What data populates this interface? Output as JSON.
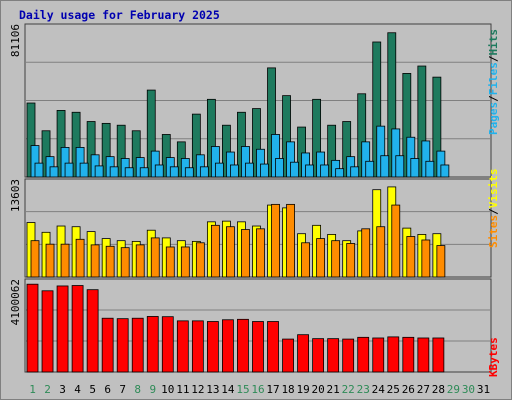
{
  "title": "Daily usage for February 2025",
  "colors": {
    "background": "#c0c0c0",
    "title": "#0000b0",
    "hits": "#1e7a5e",
    "files": "#21b2ec",
    "pages": "#21b2ec",
    "visits": "#ffff00",
    "sites": "#ff8c00",
    "kbytes": "#ff0000",
    "weekday_label": "#000000",
    "weekend_label": "#2e8b57"
  },
  "legend": {
    "top": [
      "Pages",
      "Files",
      "Hits"
    ],
    "middle": [
      "Sites",
      "Visits"
    ],
    "bottom": [
      "KBytes"
    ],
    "separator": "/"
  },
  "chart_data": {
    "type": "bar",
    "title": "Daily usage for February 2025",
    "categories": [
      "1",
      "2",
      "3",
      "4",
      "5",
      "6",
      "7",
      "8",
      "9",
      "10",
      "11",
      "12",
      "13",
      "14",
      "15",
      "16",
      "17",
      "18",
      "19",
      "20",
      "21",
      "22",
      "23",
      "24",
      "25",
      "26",
      "27",
      "28",
      "29",
      "30",
      "31"
    ],
    "weekend_days": [
      "1",
      "2",
      "8",
      "9",
      "15",
      "16",
      "22",
      "23",
      "29",
      "30"
    ],
    "grid": true,
    "panels": [
      {
        "name": "top",
        "ymax_label": "81106",
        "ylim": [
          0,
          81106
        ],
        "series": [
          {
            "name": "Hits",
            "values": [
              40000,
              25000,
              36000,
              35000,
              30000,
              29000,
              28000,
              25000,
              47000,
              23000,
              19000,
              34000,
              42000,
              28000,
              35000,
              37000,
              59000,
              44000,
              27000,
              42000,
              28000,
              30000,
              45000,
              73000,
              78000,
              56000,
              60000,
              54000,
              0,
              0,
              0
            ]
          },
          {
            "name": "Files",
            "values": [
              17000,
              11000,
              16000,
              16000,
              12000,
              11000,
              10000,
              10500,
              14000,
              10500,
              10000,
              12000,
              16500,
              13500,
              16500,
              15000,
              23000,
              19000,
              13000,
              13500,
              9000,
              11000,
              19000,
              27500,
              26000,
              21500,
              19500,
              14000,
              0,
              0,
              0
            ]
          },
          {
            "name": "Pages",
            "values": [
              7500,
              5500,
              7500,
              7500,
              6000,
              5500,
              5000,
              5000,
              6500,
              5500,
              5000,
              5500,
              7500,
              6500,
              7500,
              7000,
              10000,
              8000,
              6500,
              6500,
              4500,
              5500,
              8500,
              11500,
              11500,
              10000,
              8500,
              6500,
              0,
              0,
              0
            ]
          }
        ]
      },
      {
        "name": "middle",
        "ymax_label": "13603",
        "ylim": [
          0,
          13603
        ],
        "series": [
          {
            "name": "Visits",
            "values": [
              7800,
              6400,
              7300,
              7200,
              6500,
              5500,
              5200,
              5100,
              6700,
              5600,
              5200,
              5100,
              7900,
              8000,
              7900,
              7300,
              10300,
              9900,
              6200,
              7400,
              6100,
              5200,
              6600,
              12500,
              12900,
              7000,
              6100,
              6200,
              0,
              0,
              0
            ]
          },
          {
            "name": "Sites",
            "values": [
              5200,
              4700,
              4700,
              5400,
              4600,
              4400,
              4200,
              4600,
              5600,
              4300,
              4300,
              4900,
              7400,
              7200,
              6800,
              6900,
              10400,
              10400,
              4900,
              5500,
              5200,
              4800,
              6900,
              7200,
              10300,
              5800,
              5300,
              4500,
              0,
              0,
              0
            ]
          }
        ]
      },
      {
        "name": "bottom",
        "ymax_label": "4100062",
        "ylim": [
          0,
          4100062
        ],
        "series": [
          {
            "name": "KBytes",
            "values": [
              4000000,
              3700000,
              3920000,
              3940000,
              3750000,
              2450000,
              2430000,
              2450000,
              2530000,
              2520000,
              2330000,
              2330000,
              2300000,
              2380000,
              2400000,
              2300000,
              2300000,
              1500000,
              1700000,
              1520000,
              1520000,
              1500000,
              1580000,
              1550000,
              1600000,
              1580000,
              1550000,
              1550000,
              0,
              0,
              0
            ]
          }
        ]
      }
    ]
  }
}
